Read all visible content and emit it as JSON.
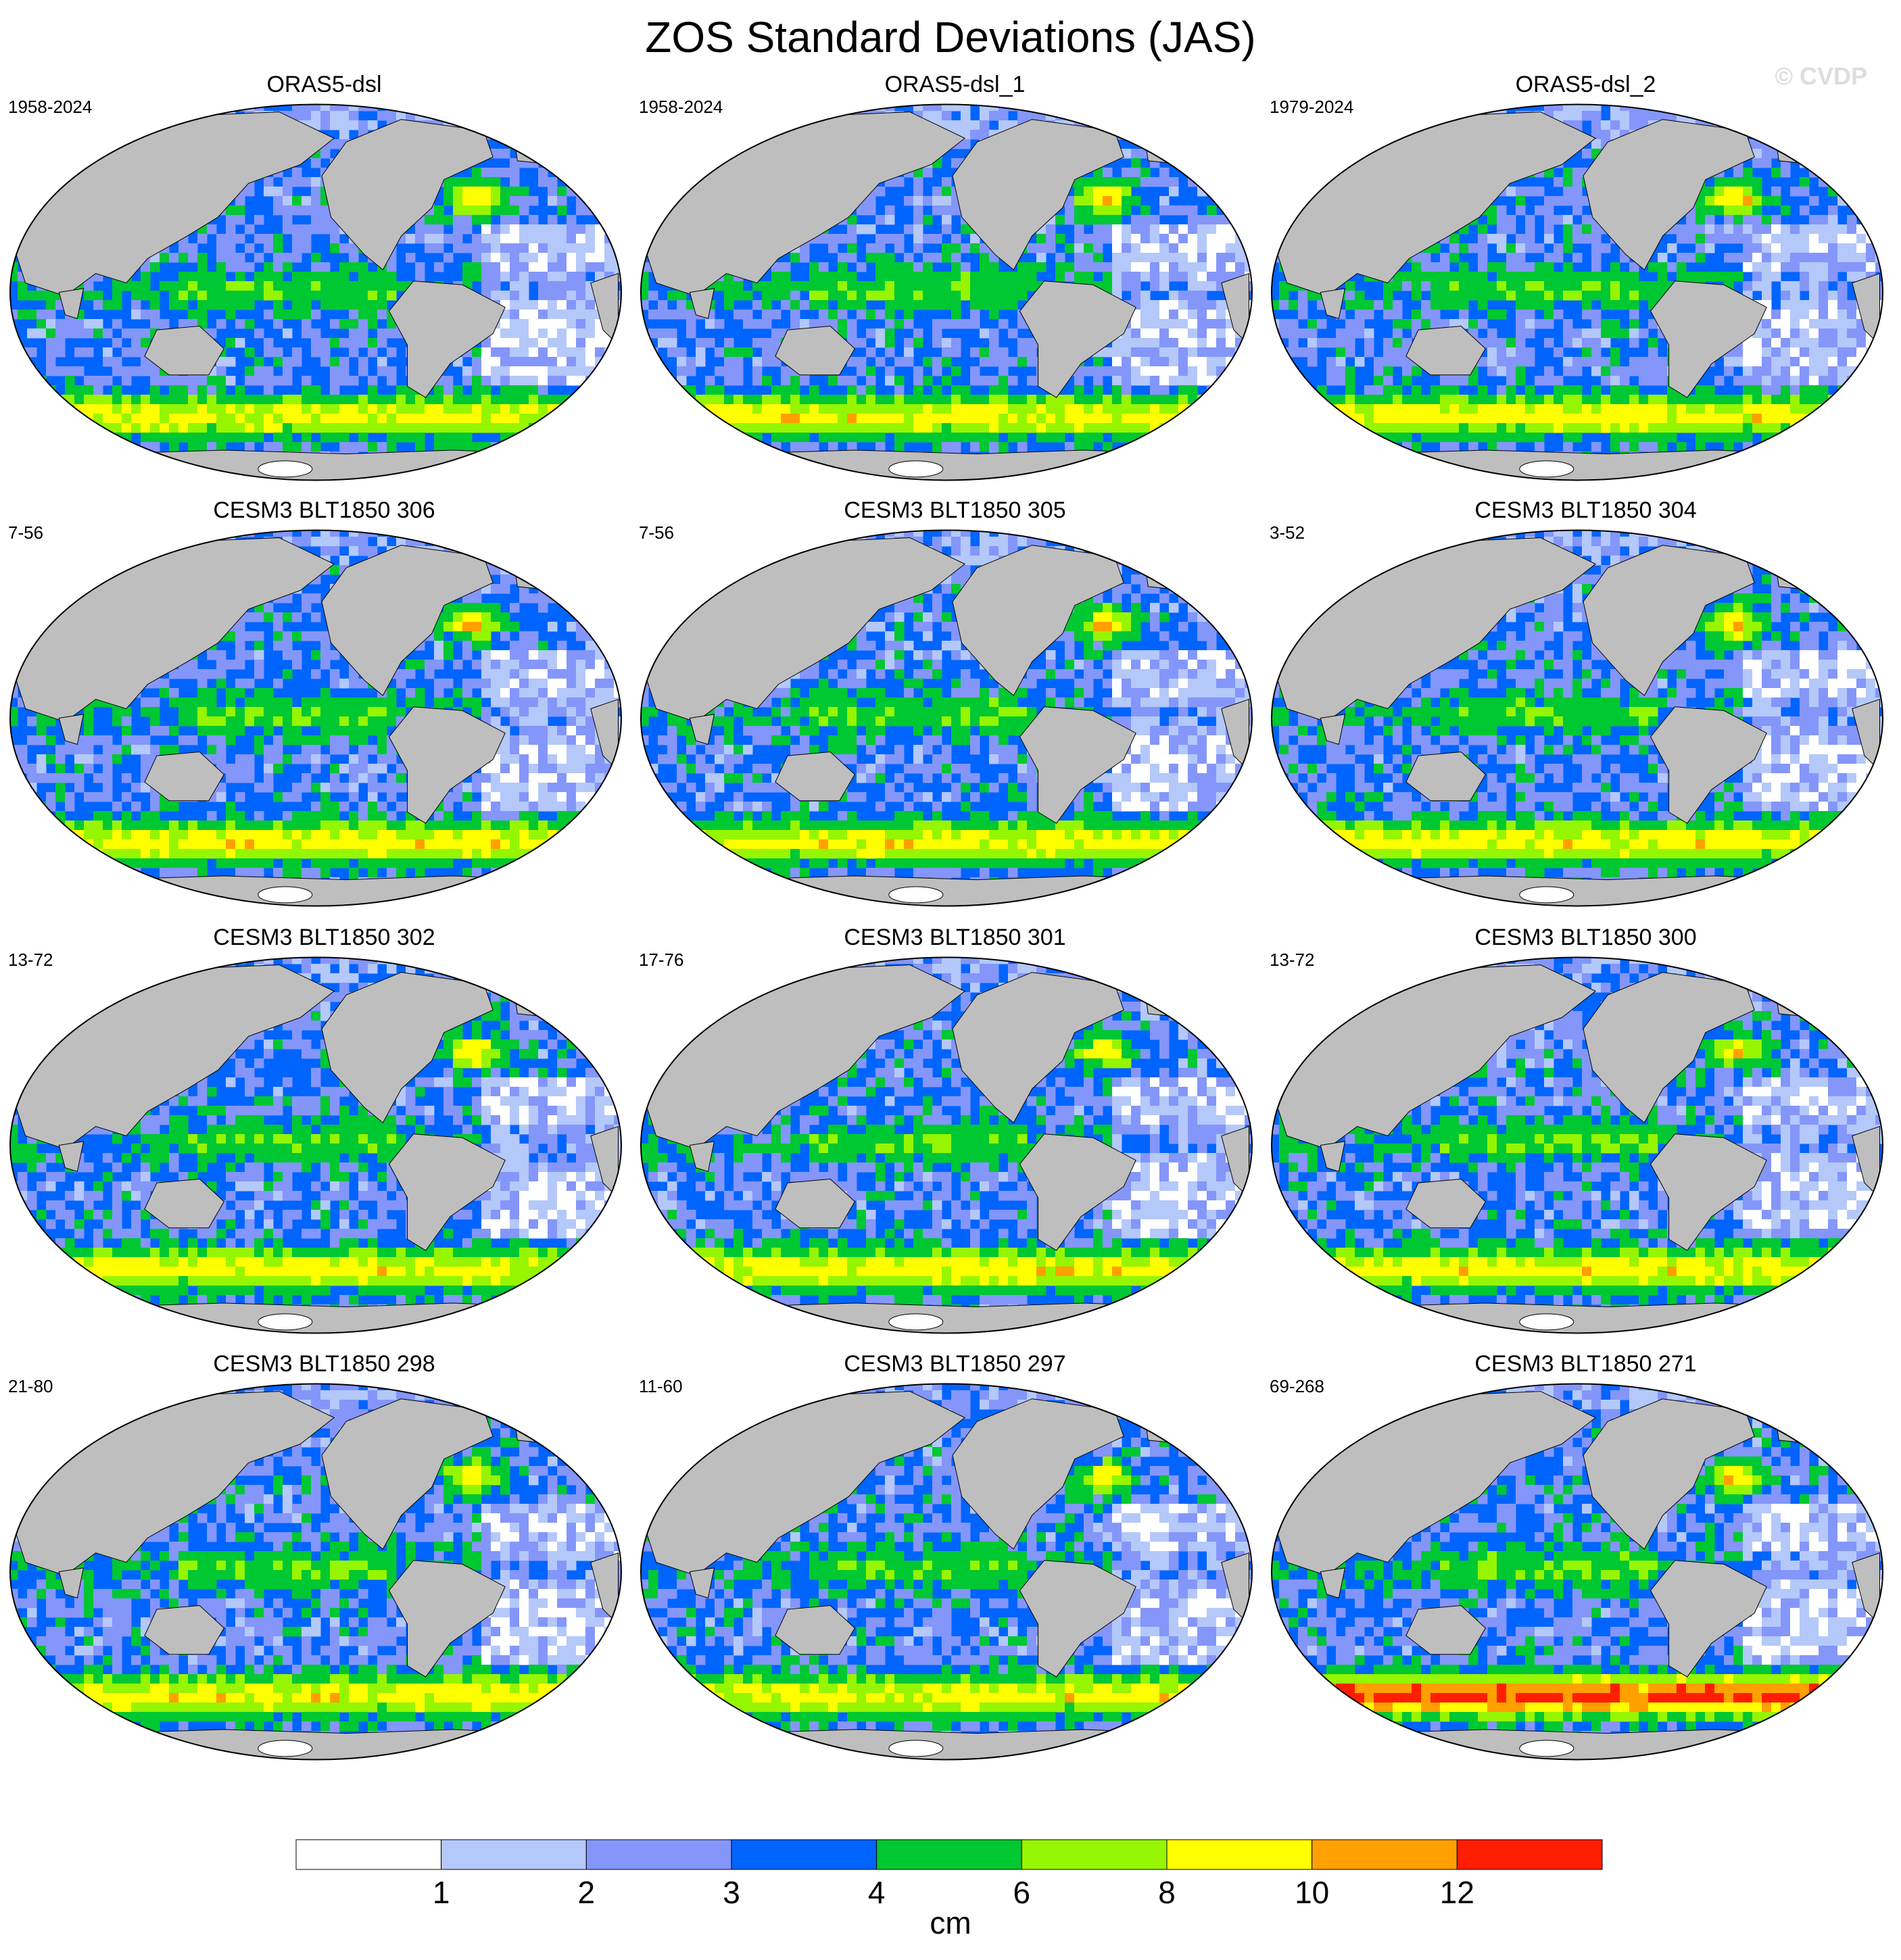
{
  "title": "ZOS Standard Deviations (JAS)",
  "watermark": "© CVDP",
  "panels": [
    {
      "title": "ORAS5-dsl",
      "period": "1958-2024"
    },
    {
      "title": "ORAS5-dsl_1",
      "period": "1958-2024"
    },
    {
      "title": "ORAS5-dsl_2",
      "period": "1979-2024"
    },
    {
      "title": "CESM3 BLT1850 306",
      "period": "7-56"
    },
    {
      "title": "CESM3 BLT1850 305",
      "period": "7-56"
    },
    {
      "title": "CESM3 BLT1850 304",
      "period": "3-52"
    },
    {
      "title": "CESM3 BLT1850 302",
      "period": "13-72"
    },
    {
      "title": "CESM3 BLT1850 301",
      "period": "17-76"
    },
    {
      "title": "CESM3 BLT1850 300",
      "period": "13-72"
    },
    {
      "title": "CESM3 BLT1850 298",
      "period": "21-80"
    },
    {
      "title": "CESM3 BLT1850 297",
      "period": "11-60"
    },
    {
      "title": "CESM3 BLT1850 271",
      "period": "69-268"
    }
  ],
  "colorbar": {
    "units": "cm",
    "colors": [
      "#ffffff",
      "#b4c8fa",
      "#8496fa",
      "#0064ff",
      "#00c832",
      "#96f500",
      "#ffff00",
      "#ffa000",
      "#ff1e00"
    ],
    "labels": [
      "1",
      "2",
      "3",
      "4",
      "6",
      "8",
      "10",
      "12"
    ]
  },
  "map_colors": {
    "land": "#bebebe",
    "ice": "#ffffff"
  }
}
